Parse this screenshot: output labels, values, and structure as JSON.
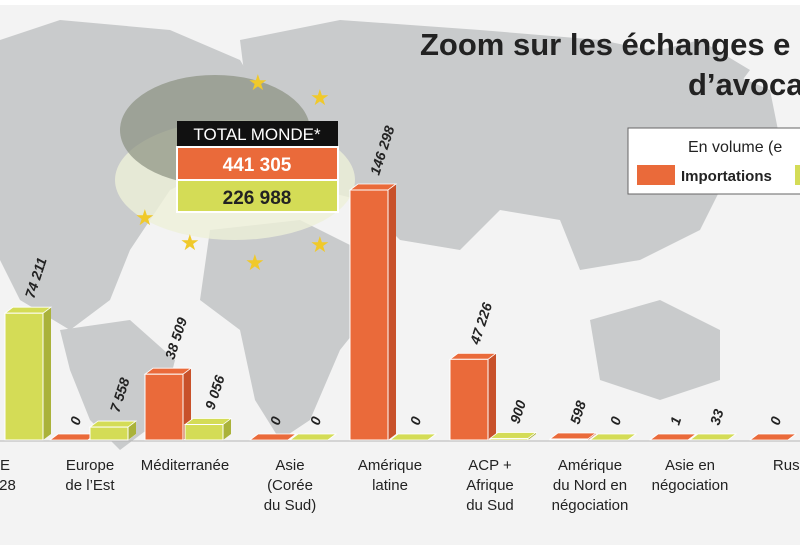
{
  "chart_data": {
    "type": "bar",
    "title": "Zoom sur les échanges e",
    "subtitle": "d’avoca",
    "legend_title": "En volume (e",
    "total": {
      "title": "TOTAL MONDE*",
      "values": [
        441305,
        226988
      ],
      "value_labels": [
        "441 305",
        "226 988"
      ]
    },
    "categories": [
      [
        "E",
        "-28"
      ],
      [
        "Europe",
        "de l’Est"
      ],
      [
        "Méditerranée"
      ],
      [
        "Asie",
        "(Corée",
        "du Sud)"
      ],
      [
        "Amérique",
        "latine"
      ],
      [
        "ACP +",
        "Afrique",
        "du Sud"
      ],
      [
        "Amérique",
        "du Nord en",
        "négociation"
      ],
      [
        "Asie en",
        "négociation"
      ],
      [
        "Russ"
      ]
    ],
    "series": [
      {
        "name": "Importations",
        "color": "#ea6a3a",
        "values": [
          null,
          0,
          38509,
          0,
          146298,
          47226,
          598,
          1,
          0
        ],
        "value_labels": [
          null,
          "0",
          "38 509",
          "0",
          "146 298",
          "47 226",
          "598",
          "1",
          "0"
        ]
      },
      {
        "color": "#d4dc56",
        "values": [
          74211,
          7558,
          9056,
          0,
          0,
          900,
          0,
          33,
          null
        ],
        "value_labels": [
          "74 211",
          "7 558",
          "9 056",
          "0",
          "0",
          "900",
          "0",
          "33",
          null
        ]
      }
    ]
  }
}
